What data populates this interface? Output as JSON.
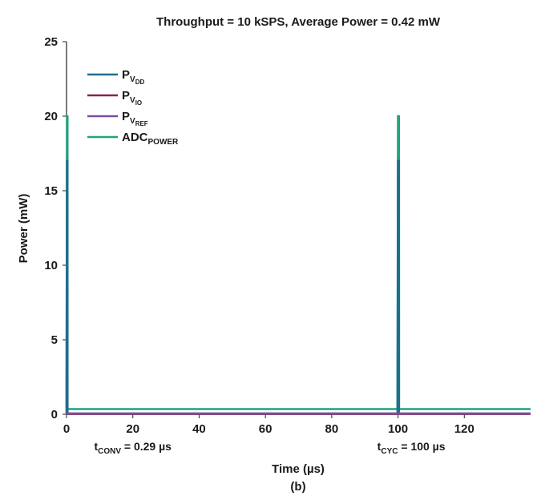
{
  "chart_data": {
    "type": "line",
    "title": "Throughput = 10 kSPS, Average Power = 0.42 mW",
    "xlabel": "Time (µs)",
    "ylabel": "Power (mW)",
    "caption": "(b)",
    "xlim": [
      0,
      140
    ],
    "ylim": [
      0,
      25
    ],
    "xticks": [
      0,
      20,
      40,
      60,
      80,
      100,
      120
    ],
    "yticks": [
      0,
      5,
      10,
      15,
      20,
      25
    ],
    "grid": false,
    "legend_position": "top-left",
    "series": [
      {
        "name": "PVDD",
        "label_main": "P",
        "label_sub": "V",
        "label_subsub": "DD",
        "color": "#1f6e8c",
        "x": [
          0,
          0.15,
          0.29,
          0.3,
          99.7,
          99.85,
          100,
          100.15,
          100.29,
          100.3,
          140
        ],
        "y": [
          0.05,
          17,
          17,
          0.05,
          0.05,
          0.05,
          17,
          17,
          17,
          0.05,
          0.05
        ]
      },
      {
        "name": "PVIO",
        "label_main": "P",
        "label_sub": "V",
        "label_subsub": "IO",
        "color": "#8b2252",
        "x": [
          0,
          140
        ],
        "y": [
          0.02,
          0.02
        ]
      },
      {
        "name": "PVREF",
        "label_main": "P",
        "label_sub": "V",
        "label_subsub": "REF",
        "color": "#7b4f9e",
        "x": [
          0,
          140
        ],
        "y": [
          0.05,
          0.05
        ]
      },
      {
        "name": "ADCPOWER",
        "label_main": "ADC",
        "label_sub": "POWER",
        "label_subsub": "",
        "color": "#1fa37e",
        "x": [
          0,
          0.15,
          0.29,
          0.3,
          99.7,
          99.85,
          100,
          100.15,
          100.29,
          100.3,
          140
        ],
        "y": [
          0.35,
          20,
          20,
          0.35,
          0.35,
          0.35,
          20,
          20,
          20,
          0.35,
          0.35
        ]
      }
    ],
    "annotations": [
      {
        "id": "tconv",
        "main": "t",
        "sub": "CONV",
        "rest": " = 0.29 µs",
        "at_x": 20
      },
      {
        "id": "tcyc",
        "main": "t",
        "sub": "CYC",
        "rest": " = 100 µs",
        "at_x": 104
      }
    ]
  }
}
